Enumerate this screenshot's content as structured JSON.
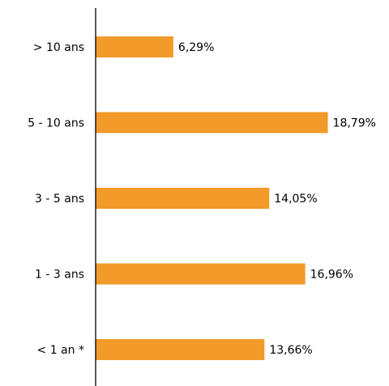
{
  "chart_data": {
    "type": "bar",
    "orientation": "horizontal",
    "categories": [
      "> 10 ans",
      "5 - 10 ans",
      "3 - 5 ans",
      "1 - 3 ans",
      "< 1 an *"
    ],
    "values": [
      6.29,
      18.79,
      14.05,
      16.96,
      13.66
    ],
    "value_labels": [
      "6,29%",
      "18,79%",
      "14,05%",
      "16,96%",
      "13,66%"
    ],
    "title": "",
    "xlabel": "",
    "ylabel": "",
    "xlim": [
      0,
      20
    ],
    "grid": false,
    "legend": "none",
    "bar_color": "#F29A2A",
    "axis_color": "#000000"
  }
}
